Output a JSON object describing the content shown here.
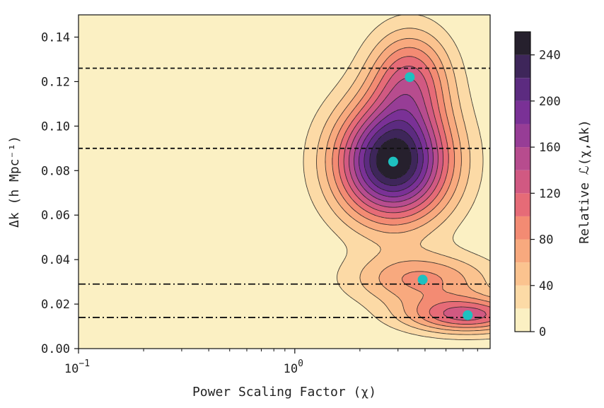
{
  "chart_data": {
    "type": "heatmap",
    "subtype": "filled-contour",
    "xscale": "log",
    "xlim": [
      0.1,
      8.0
    ],
    "ylim": [
      0.0,
      0.15
    ],
    "xlabel": "Power Scaling Factor (χ)",
    "ylabel": "Δk (h Mpc⁻¹)",
    "xticks": [
      {
        "value": 0.1,
        "base": "10",
        "exp": "−1"
      },
      {
        "value": 1.0,
        "base": "10",
        "exp": "0"
      }
    ],
    "yticks": [
      {
        "value": 0.0,
        "label": "0.00"
      },
      {
        "value": 0.02,
        "label": "0.02"
      },
      {
        "value": 0.04,
        "label": "0.04"
      },
      {
        "value": 0.06,
        "label": "0.06"
      },
      {
        "value": 0.08,
        "label": "0.08"
      },
      {
        "value": 0.1,
        "label": "0.10"
      },
      {
        "value": 0.12,
        "label": "0.12"
      },
      {
        "value": 0.14,
        "label": "0.14"
      }
    ],
    "colorbar": {
      "label": "Relative ℒ(χ,Δk)",
      "range": [
        0,
        260
      ],
      "level_step": 20,
      "ticks": [
        {
          "value": 0,
          "label": "0"
        },
        {
          "value": 40,
          "label": "40"
        },
        {
          "value": 80,
          "label": "80"
        },
        {
          "value": 120,
          "label": "120"
        },
        {
          "value": 160,
          "label": "160"
        },
        {
          "value": 200,
          "label": "200"
        },
        {
          "value": 240,
          "label": "240"
        }
      ],
      "colormap": "magma_r"
    },
    "peaks": [
      {
        "x": 2.85,
        "y": 0.084,
        "amplitude": 260
      },
      {
        "x": 3.4,
        "y": 0.122,
        "amplitude": 110
      },
      {
        "x": 3.9,
        "y": 0.031,
        "amplitude": 82
      },
      {
        "x": 6.3,
        "y": 0.015,
        "amplitude": 125
      }
    ],
    "markers": [
      {
        "x": 2.85,
        "y": 0.084
      },
      {
        "x": 3.4,
        "y": 0.122
      },
      {
        "x": 3.9,
        "y": 0.031
      },
      {
        "x": 6.3,
        "y": 0.015
      }
    ],
    "marker_color": "#1ec0c0",
    "hlines_dashed": [
      0.126,
      0.09
    ],
    "hlines_dashdot": [
      0.029,
      0.014
    ],
    "background_color": "#fbf0c3"
  }
}
